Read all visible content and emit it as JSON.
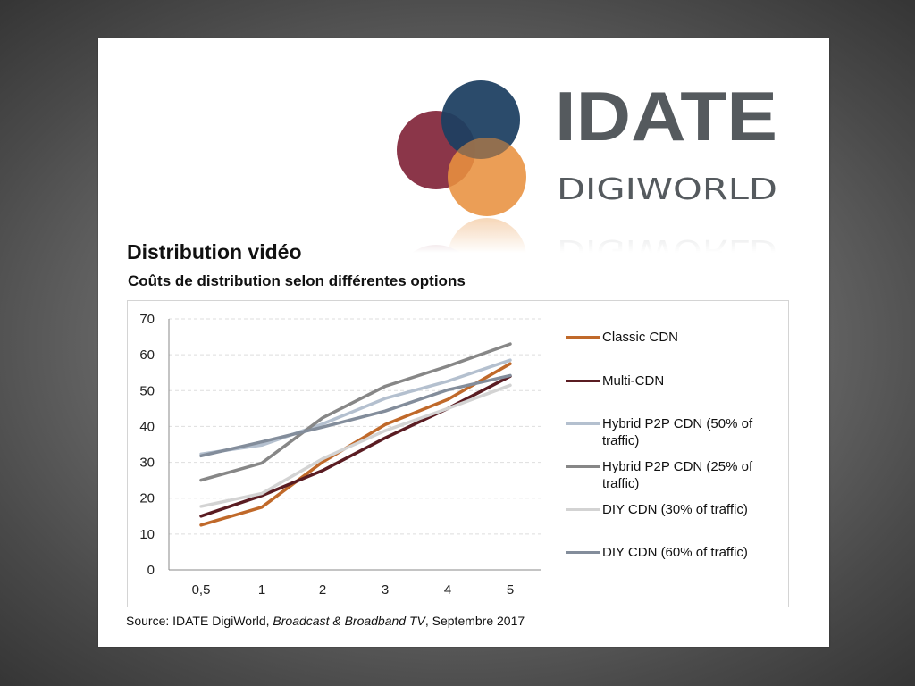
{
  "logo": {
    "brand": "IDATE",
    "sub_brand": "DIGIWORLD",
    "circle_colors": [
      "#7b1a30",
      "#1d3f60",
      "#e8913f"
    ]
  },
  "slide": {
    "title": "Distribution vidéo",
    "subtitle": "Coûts de distribution selon différentes options",
    "source_prefix": "Source: IDATE DigiWorld, ",
    "source_italic": "Broadcast & Broadband TV",
    "source_suffix": ", Septembre 2017"
  },
  "chart_data": {
    "type": "line",
    "title": "Coûts de distribution selon différentes options",
    "xlabel": "",
    "ylabel": "",
    "categories": [
      "0,5",
      "1",
      "2",
      "3",
      "4",
      "5"
    ],
    "ylim": [
      0,
      70
    ],
    "yticks": [
      0,
      10,
      20,
      30,
      40,
      50,
      60,
      70
    ],
    "grid": "horizontal dashed",
    "legend_position": "right",
    "series": [
      {
        "name": "Classic CDN",
        "color": "#c0692a",
        "values": [
          12.5,
          17.5,
          30.1,
          40.5,
          47.5,
          57.5
        ]
      },
      {
        "name": "Multi-CDN",
        "color": "#5a1c22",
        "values": [
          15.0,
          20.7,
          27.7,
          36.8,
          45.0,
          54.0
        ]
      },
      {
        "name": "Hybrid P2P CDN (50% of traffic)",
        "color": "#b4c0cf",
        "values": [
          32.3,
          34.8,
          40.7,
          47.8,
          52.6,
          58.5
        ]
      },
      {
        "name": "Hybrid P2P CDN (25% of traffic)",
        "color": "#878787",
        "values": [
          25.0,
          29.8,
          42.4,
          51.2,
          56.8,
          63.0
        ]
      },
      {
        "name": "DIY CDN (30% of traffic)",
        "color": "#d3d3d3",
        "values": [
          17.7,
          21.3,
          31.0,
          38.8,
          45.0,
          51.5
        ]
      },
      {
        "name": "DIY CDN (60% of traffic)",
        "color": "#838d9b",
        "values": [
          31.8,
          35.7,
          39.8,
          44.3,
          50.2,
          54.2
        ]
      }
    ]
  }
}
